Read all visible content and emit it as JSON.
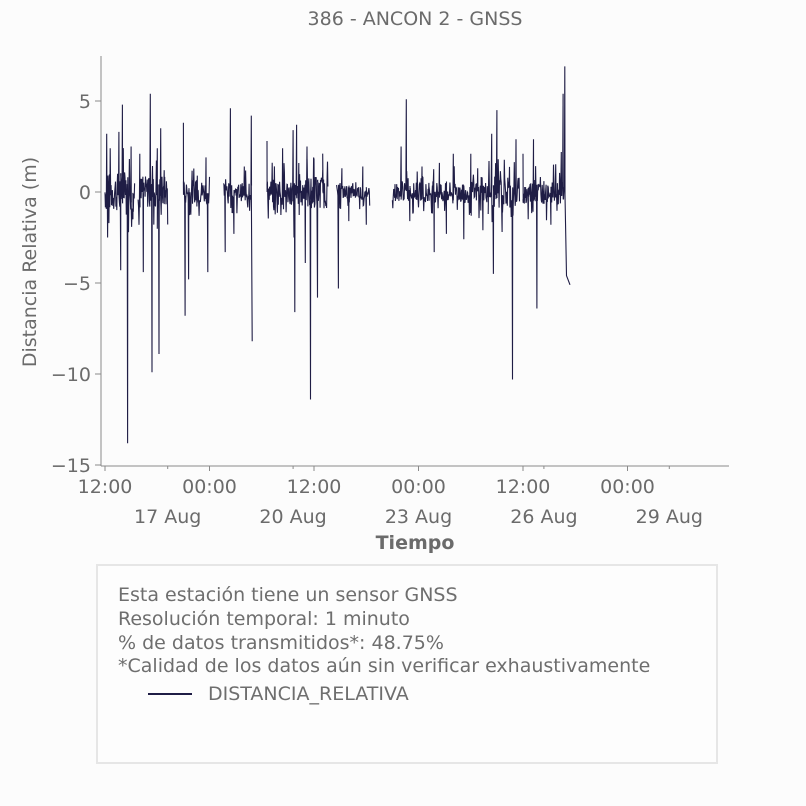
{
  "chart_data": {
    "type": "line",
    "title": "386 - ANCON 2 - GNSS",
    "xlabel": "Tiempo",
    "ylabel": "Distancia Relativa (m)",
    "ylim": [
      -15,
      7.5
    ],
    "yticks": [
      5,
      0,
      -5,
      -10,
      -15
    ],
    "ytick_labels": [
      "5",
      "0",
      "−5",
      "−10",
      "−15"
    ],
    "xlim_hours": [
      -2,
      234
    ],
    "x_time_ticks": [
      {
        "h": 0,
        "label": "12:00"
      },
      {
        "h": 60,
        "label": "00:00"
      },
      {
        "h": 120,
        "label": "12:00"
      },
      {
        "h": 180,
        "label": "00:00"
      },
      {
        "h": 240,
        "label": "12:00"
      },
      {
        "h": 300,
        "label": "00:00"
      }
    ],
    "x_date_ticks": [
      {
        "h": 36,
        "label": "17 Aug"
      },
      {
        "h": 108,
        "label": "20 Aug"
      },
      {
        "h": 180,
        "label": "23 Aug"
      },
      {
        "h": 252,
        "label": "26 Aug"
      },
      {
        "h": 324,
        "label": "29 Aug"
      }
    ],
    "grid": false,
    "series": [
      {
        "name": "DISTANCIA_RELATIVA",
        "color": "#1f1d45",
        "segments": [
          {
            "start": 0,
            "end": 17,
            "amp": 2.2,
            "spikes": [
              [
                1,
                3.2
              ],
              [
                1.5,
                -2.5
              ],
              [
                8,
                3.3
              ],
              [
                10,
                4.8
              ],
              [
                9,
                -4.3
              ],
              [
                13,
                -13.8
              ],
              [
                15,
                2.5
              ],
              [
                16,
                -1.5
              ]
            ]
          },
          {
            "start": 19,
            "end": 36,
            "amp": 1.8,
            "spikes": [
              [
                20,
                2.1
              ],
              [
                22,
                -4.4
              ],
              [
                26,
                5.4
              ],
              [
                27,
                -9.9
              ],
              [
                30,
                2.4
              ],
              [
                31,
                -8.9
              ],
              [
                32,
                3.5
              ],
              [
                34,
                1.2
              ]
            ]
          },
          {
            "start": 45,
            "end": 60,
            "amp": 1.3,
            "spikes": [
              [
                45,
                3.8
              ],
              [
                46,
                -6.8
              ],
              [
                48,
                -4.8
              ],
              [
                53,
                0.9
              ],
              [
                58,
                1.9
              ],
              [
                59,
                -4.4
              ]
            ]
          },
          {
            "start": 68,
            "end": 84,
            "amp": 1.0,
            "spikes": [
              [
                69,
                -3.3
              ],
              [
                72,
                4.6
              ],
              [
                74,
                -2.3
              ],
              [
                80,
                1.4
              ],
              [
                84,
                4.2
              ],
              [
                84.5,
                -8.2
              ]
            ]
          },
          {
            "start": 93,
            "end": 116,
            "amp": 1.4,
            "spikes": [
              [
                93,
                2.8
              ],
              [
                97,
                -1.0
              ],
              [
                102,
                2.4
              ],
              [
                108,
                3.4
              ],
              [
                108.5,
                -2.5
              ],
              [
                110,
                3.7
              ],
              [
                109,
                -6.6
              ],
              [
                115,
                -3.9
              ],
              [
                116,
                2.5
              ]
            ]
          },
          {
            "start": 116,
            "end": 128,
            "amp": 1.8,
            "spikes": [
              [
                118,
                -11.4
              ],
              [
                120,
                1.8
              ],
              [
                122,
                -5.8
              ],
              [
                125,
                1.2
              ]
            ]
          },
          {
            "start": 133,
            "end": 152,
            "amp": 0.8,
            "spikes": [
              [
                134,
                -5.3
              ],
              [
                136,
                1.3
              ],
              [
                140,
                -1.6
              ],
              [
                148,
                1.4
              ],
              [
                150,
                -1.8
              ]
            ]
          },
          {
            "start": 165,
            "end": 188,
            "amp": 1.0,
            "spikes": [
              [
                170,
                2.5
              ],
              [
                173,
                5.1
              ],
              [
                175,
                -1.6
              ],
              [
                182,
                1.4
              ],
              [
                186,
                0.5
              ]
            ]
          },
          {
            "start": 188,
            "end": 220,
            "amp": 1.2,
            "spikes": [
              [
                189,
                -3.3
              ],
              [
                192,
                1.6
              ],
              [
                196,
                -2.3
              ],
              [
                200,
                2.1
              ],
              [
                206,
                -2.6
              ],
              [
                210,
                2.1
              ],
              [
                214,
                1.3
              ],
              [
                217,
                -2.1
              ]
            ]
          },
          {
            "start": 220,
            "end": 238,
            "amp": 1.7,
            "spikes": [
              [
                222,
                3.2
              ],
              [
                223,
                -4.5
              ],
              [
                225,
                4.5
              ],
              [
                228,
                -2.2
              ],
              [
                234,
                -10.3
              ],
              [
                236,
                2.9
              ]
            ]
          },
          {
            "start": 240,
            "end": 264,
            "amp": 1.3,
            "spikes": [
              [
                240,
                2.1
              ],
              [
                243,
                -1.5
              ],
              [
                246,
                2.9
              ],
              [
                248,
                -6.4
              ],
              [
                252,
                0.6
              ],
              [
                256,
                -1.8
              ],
              [
                262,
                2.2
              ],
              [
                263,
                5.4
              ],
              [
                264,
                6.9
              ],
              [
                265,
                -4.6
              ],
              [
                267,
                -5.1
              ]
            ]
          }
        ]
      }
    ]
  },
  "info": {
    "line1": "Esta estación tiene un sensor GNSS",
    "line2": "Resolución temporal: 1 minuto",
    "line3": "% de datos transmitidos*: 48.75%",
    "line4": "*Calidad de los datos aún sin verificar exhaustivamente"
  },
  "legend": {
    "label": "DISTANCIA_RELATIVA",
    "color": "#1f1d45"
  }
}
